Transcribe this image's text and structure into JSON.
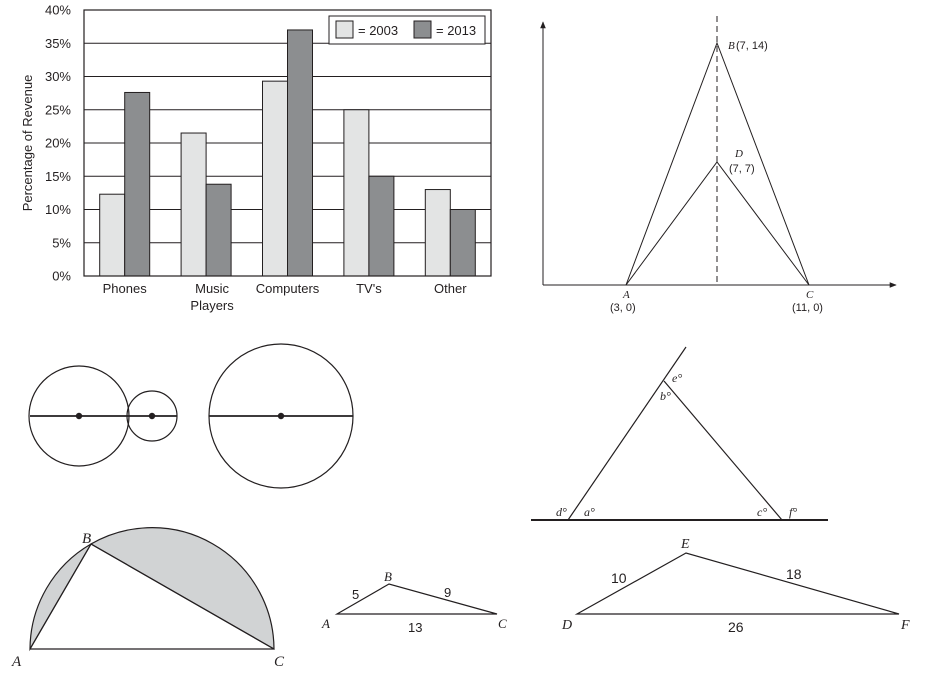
{
  "bar_chart": {
    "ylabel": "Percentage of Revenue",
    "yticks": [
      "0%",
      "5%",
      "10%",
      "15%",
      "20%",
      "25%",
      "30%",
      "35%",
      "40%"
    ],
    "categories": [
      {
        "line1": "Phones",
        "line2": ""
      },
      {
        "line1": "Music",
        "line2": "Players"
      },
      {
        "line1": "Computers",
        "line2": ""
      },
      {
        "line1": "TV's",
        "line2": ""
      },
      {
        "line1": "Other",
        "line2": ""
      }
    ],
    "legend": [
      "= 2003",
      "= 2013"
    ],
    "colors": {
      "2003": "#e3e4e4",
      "2013": "#8c8e90"
    }
  },
  "chart_data": {
    "type": "bar",
    "categories": [
      "Phones",
      "Music Players",
      "Computers",
      "TV's",
      "Other"
    ],
    "series": [
      {
        "name": "2003",
        "values": [
          12.3,
          21.5,
          29.3,
          25.0,
          13.0
        ]
      },
      {
        "name": "2013",
        "values": [
          27.6,
          13.8,
          37.0,
          15.0,
          10.0
        ]
      }
    ],
    "xlabel": "",
    "ylabel": "Percentage of Revenue",
    "ylim": [
      0,
      40
    ],
    "grid": true,
    "legend_position": "top-right"
  },
  "coord_diagram": {
    "B": "B",
    "B_coords": "(7, 14)",
    "D": "D",
    "D_coords": "(7, 7)",
    "A": "A",
    "A_coords": "(3, 0)",
    "C": "C",
    "C_coords": "(11, 0)"
  },
  "angle_diagram": {
    "e": "e°",
    "b": "b°",
    "d": "d°",
    "a": "a°",
    "c": "c°",
    "f": "f°"
  },
  "semicircle": {
    "A": "A",
    "B": "B",
    "C": "C"
  },
  "triangle_small": {
    "A": "A",
    "B": "B",
    "C": "C",
    "AB": "5",
    "BC": "9",
    "AC": "13"
  },
  "triangle_large": {
    "D": "D",
    "E": "E",
    "F": "F",
    "DE": "10",
    "EF": "18",
    "DF": "26"
  }
}
